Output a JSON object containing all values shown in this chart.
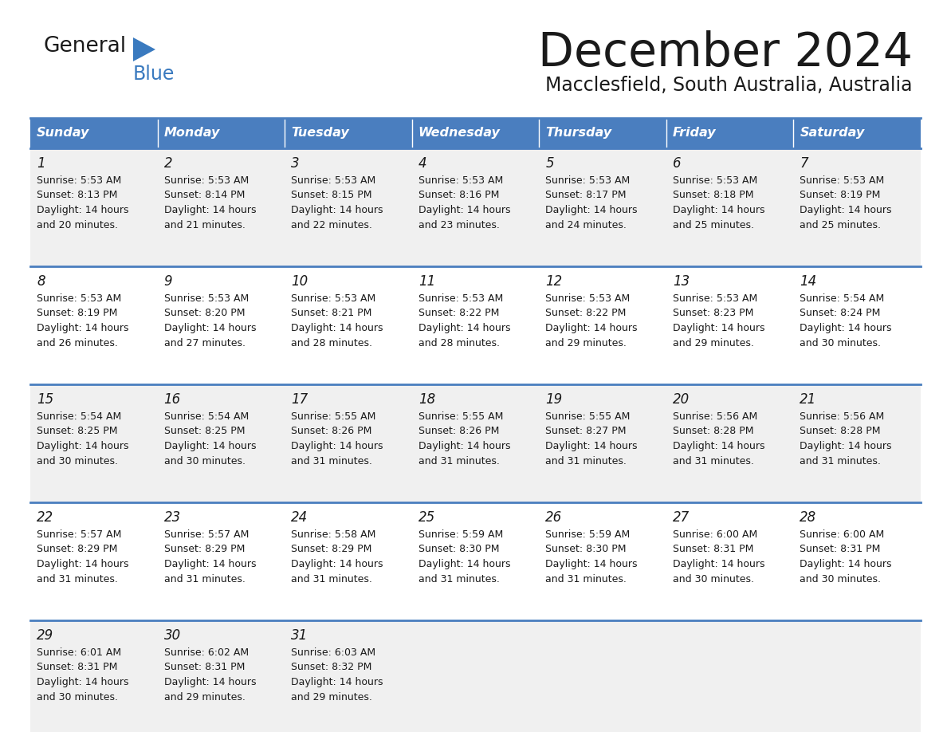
{
  "title": "December 2024",
  "subtitle": "Macclesfield, South Australia, Australia",
  "header_bg": "#4a7ebf",
  "header_text_color": "#ffffff",
  "cell_bg_odd": "#f0f0f0",
  "cell_bg_even": "#ffffff",
  "border_color": "#4a7ebf",
  "day_names": [
    "Sunday",
    "Monday",
    "Tuesday",
    "Wednesday",
    "Thursday",
    "Friday",
    "Saturday"
  ],
  "calendar_data": [
    [
      {
        "day": 1,
        "sunrise": "5:53 AM",
        "sunset": "8:13 PM",
        "daylight_h": "14 hours",
        "daylight_m": "and 20 minutes."
      },
      {
        "day": 2,
        "sunrise": "5:53 AM",
        "sunset": "8:14 PM",
        "daylight_h": "14 hours",
        "daylight_m": "and 21 minutes."
      },
      {
        "day": 3,
        "sunrise": "5:53 AM",
        "sunset": "8:15 PM",
        "daylight_h": "14 hours",
        "daylight_m": "and 22 minutes."
      },
      {
        "day": 4,
        "sunrise": "5:53 AM",
        "sunset": "8:16 PM",
        "daylight_h": "14 hours",
        "daylight_m": "and 23 minutes."
      },
      {
        "day": 5,
        "sunrise": "5:53 AM",
        "sunset": "8:17 PM",
        "daylight_h": "14 hours",
        "daylight_m": "and 24 minutes."
      },
      {
        "day": 6,
        "sunrise": "5:53 AM",
        "sunset": "8:18 PM",
        "daylight_h": "14 hours",
        "daylight_m": "and 25 minutes."
      },
      {
        "day": 7,
        "sunrise": "5:53 AM",
        "sunset": "8:19 PM",
        "daylight_h": "14 hours",
        "daylight_m": "and 25 minutes."
      }
    ],
    [
      {
        "day": 8,
        "sunrise": "5:53 AM",
        "sunset": "8:19 PM",
        "daylight_h": "14 hours",
        "daylight_m": "and 26 minutes."
      },
      {
        "day": 9,
        "sunrise": "5:53 AM",
        "sunset": "8:20 PM",
        "daylight_h": "14 hours",
        "daylight_m": "and 27 minutes."
      },
      {
        "day": 10,
        "sunrise": "5:53 AM",
        "sunset": "8:21 PM",
        "daylight_h": "14 hours",
        "daylight_m": "and 28 minutes."
      },
      {
        "day": 11,
        "sunrise": "5:53 AM",
        "sunset": "8:22 PM",
        "daylight_h": "14 hours",
        "daylight_m": "and 28 minutes."
      },
      {
        "day": 12,
        "sunrise": "5:53 AM",
        "sunset": "8:22 PM",
        "daylight_h": "14 hours",
        "daylight_m": "and 29 minutes."
      },
      {
        "day": 13,
        "sunrise": "5:53 AM",
        "sunset": "8:23 PM",
        "daylight_h": "14 hours",
        "daylight_m": "and 29 minutes."
      },
      {
        "day": 14,
        "sunrise": "5:54 AM",
        "sunset": "8:24 PM",
        "daylight_h": "14 hours",
        "daylight_m": "and 30 minutes."
      }
    ],
    [
      {
        "day": 15,
        "sunrise": "5:54 AM",
        "sunset": "8:25 PM",
        "daylight_h": "14 hours",
        "daylight_m": "and 30 minutes."
      },
      {
        "day": 16,
        "sunrise": "5:54 AM",
        "sunset": "8:25 PM",
        "daylight_h": "14 hours",
        "daylight_m": "and 30 minutes."
      },
      {
        "day": 17,
        "sunrise": "5:55 AM",
        "sunset": "8:26 PM",
        "daylight_h": "14 hours",
        "daylight_m": "and 31 minutes."
      },
      {
        "day": 18,
        "sunrise": "5:55 AM",
        "sunset": "8:26 PM",
        "daylight_h": "14 hours",
        "daylight_m": "and 31 minutes."
      },
      {
        "day": 19,
        "sunrise": "5:55 AM",
        "sunset": "8:27 PM",
        "daylight_h": "14 hours",
        "daylight_m": "and 31 minutes."
      },
      {
        "day": 20,
        "sunrise": "5:56 AM",
        "sunset": "8:28 PM",
        "daylight_h": "14 hours",
        "daylight_m": "and 31 minutes."
      },
      {
        "day": 21,
        "sunrise": "5:56 AM",
        "sunset": "8:28 PM",
        "daylight_h": "14 hours",
        "daylight_m": "and 31 minutes."
      }
    ],
    [
      {
        "day": 22,
        "sunrise": "5:57 AM",
        "sunset": "8:29 PM",
        "daylight_h": "14 hours",
        "daylight_m": "and 31 minutes."
      },
      {
        "day": 23,
        "sunrise": "5:57 AM",
        "sunset": "8:29 PM",
        "daylight_h": "14 hours",
        "daylight_m": "and 31 minutes."
      },
      {
        "day": 24,
        "sunrise": "5:58 AM",
        "sunset": "8:29 PM",
        "daylight_h": "14 hours",
        "daylight_m": "and 31 minutes."
      },
      {
        "day": 25,
        "sunrise": "5:59 AM",
        "sunset": "8:30 PM",
        "daylight_h": "14 hours",
        "daylight_m": "and 31 minutes."
      },
      {
        "day": 26,
        "sunrise": "5:59 AM",
        "sunset": "8:30 PM",
        "daylight_h": "14 hours",
        "daylight_m": "and 31 minutes."
      },
      {
        "day": 27,
        "sunrise": "6:00 AM",
        "sunset": "8:31 PM",
        "daylight_h": "14 hours",
        "daylight_m": "and 30 minutes."
      },
      {
        "day": 28,
        "sunrise": "6:00 AM",
        "sunset": "8:31 PM",
        "daylight_h": "14 hours",
        "daylight_m": "and 30 minutes."
      }
    ],
    [
      {
        "day": 29,
        "sunrise": "6:01 AM",
        "sunset": "8:31 PM",
        "daylight_h": "14 hours",
        "daylight_m": "and 30 minutes."
      },
      {
        "day": 30,
        "sunrise": "6:02 AM",
        "sunset": "8:31 PM",
        "daylight_h": "14 hours",
        "daylight_m": "and 29 minutes."
      },
      {
        "day": 31,
        "sunrise": "6:03 AM",
        "sunset": "8:32 PM",
        "daylight_h": "14 hours",
        "daylight_m": "and 29 minutes."
      },
      null,
      null,
      null,
      null
    ]
  ]
}
